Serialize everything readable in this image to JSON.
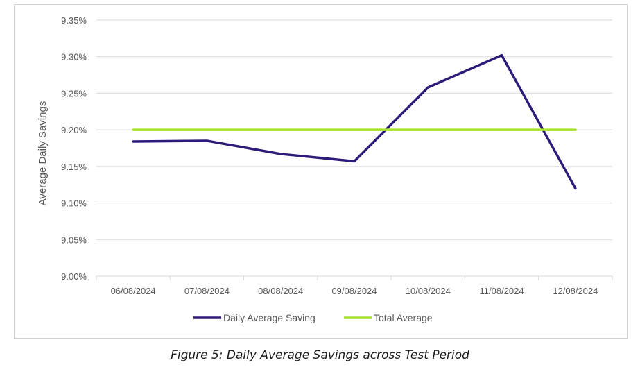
{
  "chart_data": {
    "type": "line",
    "title": "",
    "xlabel": "",
    "ylabel": "Average Daily Savings",
    "categories": [
      "06/08/2024",
      "07/08/2024",
      "08/08/2024",
      "09/08/2024",
      "10/08/2024",
      "11/08/2024",
      "12/08/2024"
    ],
    "ylim": [
      9.0,
      9.35
    ],
    "yticks": [
      9.0,
      9.05,
      9.1,
      9.15,
      9.2,
      9.25,
      9.3,
      9.35
    ],
    "ytick_labels": [
      "9.00%",
      "9.05%",
      "9.10%",
      "9.15%",
      "9.20%",
      "9.25%",
      "9.30%",
      "9.35%"
    ],
    "grid": true,
    "legend_position": "bottom",
    "series": [
      {
        "name": "Daily Average Saving",
        "color": "#2e1a78",
        "values": [
          9.184,
          9.185,
          9.167,
          9.157,
          9.258,
          9.302,
          9.12
        ]
      },
      {
        "name": "Total Average",
        "color": "#a6e22e",
        "values": [
          9.2,
          9.2,
          9.2,
          9.2,
          9.2,
          9.2,
          9.2
        ]
      }
    ]
  },
  "caption": "Figure 5: Daily Average Savings across Test Period"
}
